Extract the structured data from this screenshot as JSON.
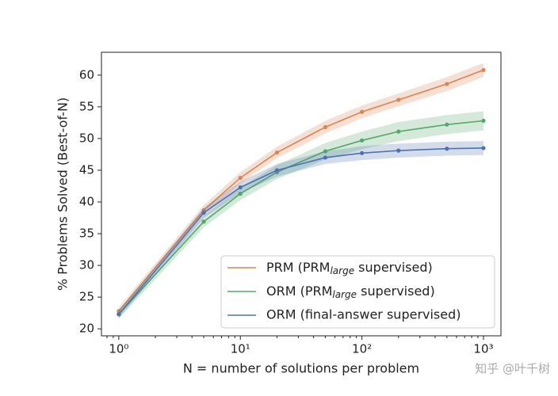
{
  "chart_data": {
    "type": "line",
    "x_label": "N = number of solutions per problem",
    "y_label": "% Problems Solved (Best-of-N)",
    "x": [
      1,
      5,
      10,
      20,
      50,
      100,
      200,
      500,
      1000
    ],
    "x_log": true,
    "xlim": [
      0.72,
      1392
    ],
    "ylim": [
      18.9,
      63.6
    ],
    "xticks": [
      {
        "value": 1,
        "label": "10⁰"
      },
      {
        "value": 10,
        "label": "10¹"
      },
      {
        "value": 100,
        "label": "10²"
      },
      {
        "value": 1000,
        "label": "10³"
      }
    ],
    "yticks": [
      20,
      25,
      30,
      35,
      40,
      45,
      50,
      55,
      60
    ],
    "grid": false,
    "legend": "lower right",
    "series": [
      {
        "name": "PRM (PRMlarge supervised)",
        "subscript": "large",
        "color": "#dd8452",
        "values": [
          22.8,
          38.7,
          43.8,
          47.8,
          51.8,
          54.2,
          56.1,
          58.6,
          60.8
        ],
        "errors": [
          0.6,
          0.8,
          0.9,
          0.9,
          1.0,
          1.0,
          1.0,
          1.1,
          1.1
        ]
      },
      {
        "name": "ORM (PRMlarge supervised)",
        "subscript": "large",
        "color": "#55a868",
        "values": [
          22.3,
          36.9,
          41.3,
          44.7,
          48.0,
          49.7,
          51.1,
          52.2,
          52.8
        ],
        "errors": [
          0.7,
          0.9,
          1.0,
          1.1,
          1.3,
          1.4,
          1.5,
          1.5,
          1.5
        ]
      },
      {
        "name": "ORM (final-answer supervised)",
        "color": "#4c72b0",
        "values": [
          22.3,
          38.3,
          42.3,
          45.0,
          47.0,
          47.7,
          48.1,
          48.4,
          48.5
        ],
        "errors": [
          0.6,
          0.8,
          0.9,
          1.0,
          1.0,
          1.1,
          1.1,
          1.1,
          1.1
        ]
      }
    ],
    "watermark": "知乎 @叶千树"
  }
}
